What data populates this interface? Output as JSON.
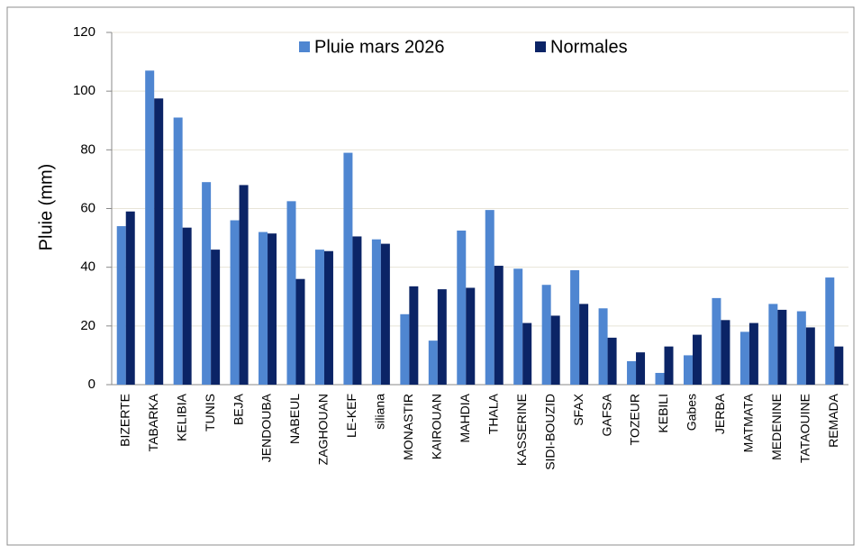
{
  "chart_data": {
    "type": "bar",
    "y_label": "Pluie (mm)",
    "categories": [
      "BIZERTE",
      "TABARKA",
      "KELIBIA",
      "TUNIS",
      "BEJA",
      "JENDOUBA",
      "NABEUL",
      "ZAGHOUAN",
      "LE-KEF",
      "siliana",
      "MONASTIR",
      "KAIROUAN",
      "MAHDIA",
      "THALA",
      "KASSERINE",
      "SIDI-BOUZID",
      "SFAX",
      "GAFSA",
      "TOZEUR",
      "KEBILI",
      "Gabes",
      "JERBA",
      "MATMATA",
      "MEDENINE",
      "TATAOUINE",
      "REMADA"
    ],
    "series": [
      {
        "name": "Pluie mars 2026",
        "color": "#4f86d1",
        "values": [
          54,
          107,
          91,
          69,
          56,
          52,
          62.5,
          46,
          79,
          49.5,
          24,
          15,
          52.5,
          59.5,
          39.5,
          34,
          39,
          26,
          8,
          4,
          10,
          29.5,
          18,
          27.5,
          25,
          36.5
        ]
      },
      {
        "name": "Normales",
        "color": "#0b2466",
        "values": [
          59,
          97.5,
          53.5,
          46,
          68,
          51.5,
          36,
          45.5,
          50.5,
          48,
          33.5,
          32.5,
          33,
          40.5,
          21,
          23.5,
          27.5,
          16,
          11,
          13,
          17,
          22,
          21,
          25.5,
          19.5,
          13
        ]
      }
    ],
    "ylim": [
      0,
      120
    ],
    "yticks": [
      0,
      20,
      40,
      60,
      80,
      100,
      120
    ],
    "grid": true
  }
}
